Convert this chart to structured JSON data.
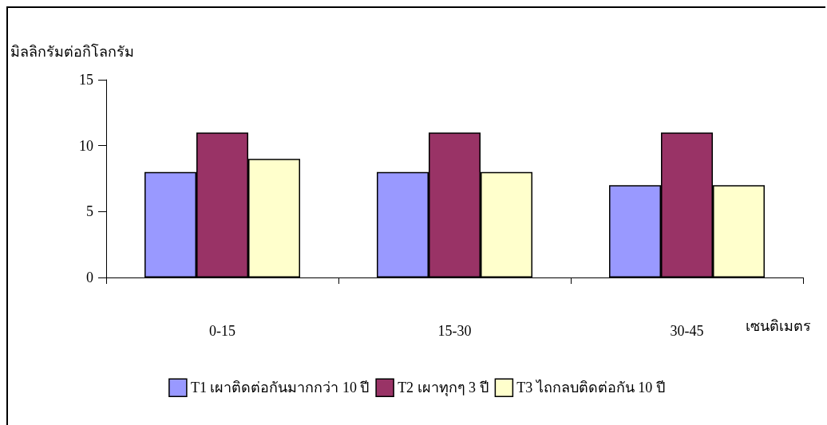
{
  "chart_data": {
    "type": "bar",
    "ylabel": "มิลลิกรัมต่อกิโลกรัม",
    "xlabel": "เซนติเมตร",
    "categories": [
      "0-15",
      "15-30",
      "30-45"
    ],
    "series": [
      {
        "name": "T1 เผาติดต่อกันมากกว่า 10 ปี",
        "color": "#9999ff",
        "values": [
          8,
          8,
          7
        ]
      },
      {
        "name": "T2 เผาทุกๆ 3 ปี",
        "color": "#993366",
        "values": [
          11,
          11,
          11
        ]
      },
      {
        "name": "T3 ไถกลบติดต่อกัน 10 ปี",
        "color": "#ffffcc",
        "values": [
          9,
          8,
          7
        ]
      }
    ],
    "ylim": [
      0,
      15
    ],
    "yticks": [
      0,
      5,
      10,
      15
    ],
    "grid": false,
    "legend": "bottom"
  }
}
